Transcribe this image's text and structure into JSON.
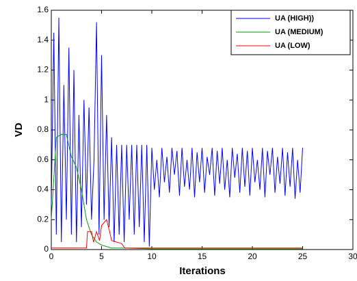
{
  "chart_data": {
    "type": "line",
    "xlabel": "Iterations",
    "ylabel": "VD",
    "xlim": [
      0,
      30
    ],
    "ylim": [
      0,
      1.6
    ],
    "xticks": [
      0,
      5,
      10,
      15,
      20,
      25,
      30
    ],
    "yticks": [
      0,
      0.2,
      0.4,
      0.6,
      0.8,
      1,
      1.2,
      1.4,
      1.6
    ],
    "legend": "upper right",
    "series": [
      {
        "name": "UA (HIGH))",
        "color": "#0000ff",
        "x": [
          0,
          0.25,
          0.5,
          0.75,
          1,
          1.25,
          1.5,
          1.75,
          2,
          2.25,
          2.5,
          2.75,
          3,
          3.25,
          3.5,
          3.75,
          4,
          4.25,
          4.5,
          4.75,
          5,
          5.25,
          5.5,
          5.75,
          6,
          6.25,
          6.5,
          6.75,
          7,
          7.25,
          7.5,
          7.75,
          8,
          8.25,
          8.5,
          8.75,
          9,
          9.25,
          9.5,
          9.75,
          10,
          10.25,
          10.5,
          10.75,
          11,
          11.25,
          11.5,
          11.75,
          12,
          12.25,
          12.5,
          12.75,
          13,
          13.25,
          13.5,
          13.75,
          14,
          14.25,
          14.5,
          14.75,
          15,
          15.25,
          15.5,
          15.75,
          16,
          16.25,
          16.5,
          16.75,
          17,
          17.25,
          17.5,
          17.75,
          18,
          18.25,
          18.5,
          18.75,
          19,
          19.25,
          19.5,
          19.75,
          20,
          20.25,
          20.5,
          20.75,
          21,
          21.25,
          21.5,
          21.75,
          22,
          22.25,
          22.5,
          22.75,
          23,
          23.25,
          23.5,
          23.75,
          24,
          24.25,
          24.5,
          24.75,
          25
        ],
        "values": [
          0.3,
          1.45,
          0.1,
          1.55,
          0.05,
          1.1,
          0.2,
          1.35,
          0.1,
          1.2,
          0.05,
          0.9,
          0.15,
          1.0,
          0.3,
          0.95,
          0.2,
          0.6,
          1.52,
          0.1,
          1.3,
          0.2,
          0.9,
          0.15,
          0.75,
          0.05,
          0.7,
          0.1,
          0.7,
          0.05,
          0.7,
          0.2,
          0.7,
          0.1,
          0.7,
          0.15,
          0.7,
          0.05,
          0.7,
          0.02,
          0.68,
          0.4,
          0.6,
          0.35,
          0.68,
          0.45,
          0.62,
          0.38,
          0.68,
          0.5,
          0.66,
          0.36,
          0.68,
          0.42,
          0.6,
          0.4,
          0.68,
          0.35,
          0.65,
          0.45,
          0.68,
          0.38,
          0.62,
          0.5,
          0.68,
          0.36,
          0.66,
          0.44,
          0.68,
          0.4,
          0.6,
          0.35,
          0.68,
          0.48,
          0.64,
          0.38,
          0.68,
          0.42,
          0.66,
          0.36,
          0.68,
          0.45,
          0.6,
          0.4,
          0.68,
          0.35,
          0.66,
          0.5,
          0.68,
          0.38,
          0.62,
          0.44,
          0.68,
          0.36,
          0.65,
          0.42,
          0.68,
          0.34,
          0.6,
          0.38,
          0.68
        ]
      },
      {
        "name": "UA (MEDIUM)",
        "color": "#00a000",
        "x": [
          0,
          0.5,
          1,
          1.5,
          2,
          2.5,
          3,
          3.5,
          4,
          4.5,
          5,
          5.5,
          6,
          7,
          10,
          25
        ],
        "values": [
          0.2,
          0.75,
          0.77,
          0.77,
          0.62,
          0.55,
          0.4,
          0.2,
          0.1,
          0.05,
          0.03,
          0.02,
          0.01,
          0.01,
          0.005,
          0.005
        ]
      },
      {
        "name": "UA (LOW)",
        "color": "#ff0000",
        "x": [
          0,
          3.5,
          3.6,
          4,
          4.2,
          4.5,
          4.8,
          5,
          5.5,
          5.8,
          6,
          7,
          7.3,
          10,
          25
        ],
        "values": [
          0.01,
          0.01,
          0.12,
          0.12,
          0.05,
          0.12,
          0.06,
          0.16,
          0.2,
          0.12,
          0.06,
          0.04,
          0.01,
          0.01,
          0.01
        ]
      }
    ]
  }
}
